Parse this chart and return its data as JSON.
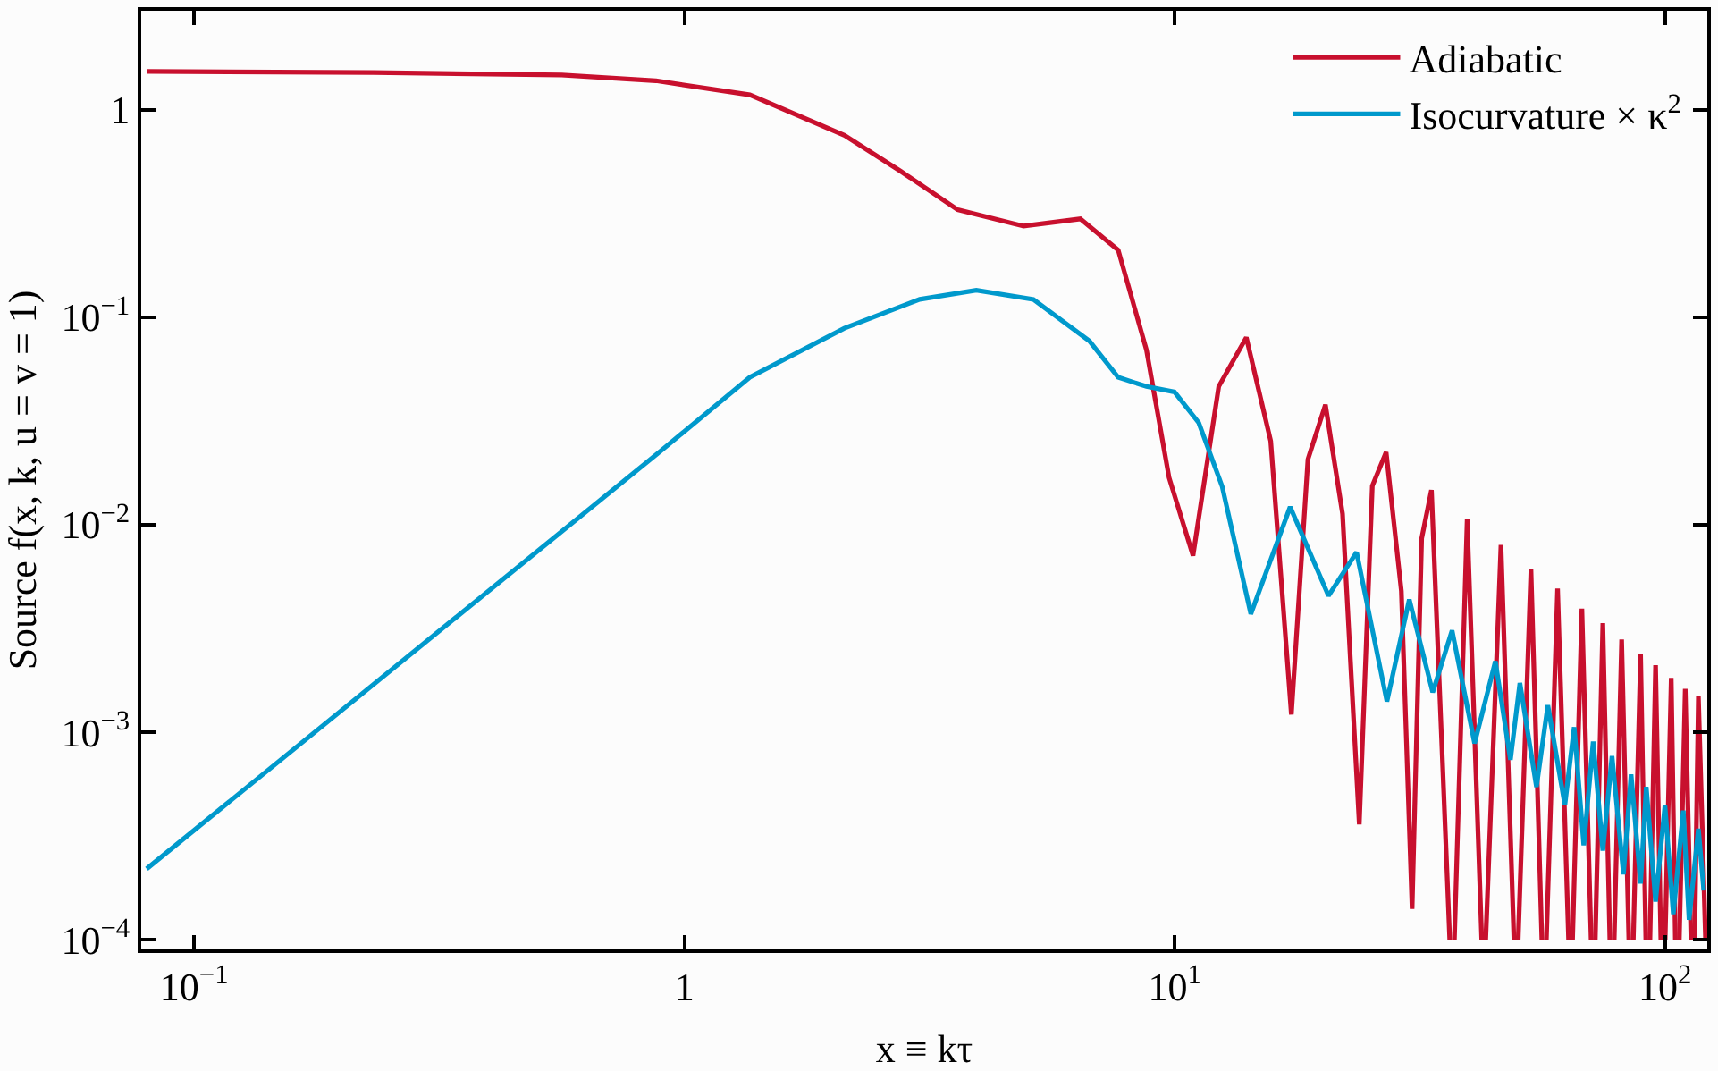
{
  "chart_data": {
    "type": "line",
    "xlabel": "x ≡ kτ",
    "ylabel": "Source f(x, k, u = v = 1)",
    "log": "xy",
    "xlim": [
      0.078,
      122
    ],
    "ylim": [
      9e-05,
      3
    ],
    "xticks": [
      {
        "value": 0.1,
        "label": "10$^{−1}$"
      },
      1,
      {
        "value": 10,
        "label": "10$^{1}$"
      },
      {
        "value": 100,
        "label": "10$^{2}$"
      }
    ],
    "yticks": [
      {
        "value": 0.0001,
        "label": "10$^{−4}$"
      },
      {
        "value": 0.001,
        "label": "10$^{−3}$"
      },
      {
        "value": 0.01,
        "label": "10$^{−2}$"
      },
      {
        "value": 0.1,
        "label": "10$^{−1}$"
      },
      1
    ],
    "legend": "top right",
    "marker": "none",
    "line_style": "solid",
    "series": [
      {
        "name": "Adiabatic",
        "color": "#c8102e",
        "x": [
          0.08,
          0.232,
          0.562,
          0.875,
          1.36,
          2.12,
          2.77,
          3.61,
          4.92,
          6.42,
          7.67,
          8.76,
          9.74,
          10.9,
          12.3,
          14.0,
          15.7,
          17.3,
          18.7,
          20.3,
          22.0,
          23.8,
          25.3,
          27.0,
          29.0,
          30.5,
          31.9,
          33.4,
          36.4,
          36.8,
          37.2,
          39.5,
          42.3,
          42.7,
          43.1,
          46.3,
          49.2,
          49.7,
          50.2,
          53.3,
          56.1,
          56.7,
          57.3,
          60.4,
          63.6,
          64.2,
          64.8,
          67.7,
          70.7,
          71.4,
          72.1,
          74.7,
          77.2,
          78.0,
          78.8,
          81.6,
          84.4,
          85.3,
          86.2,
          89.2,
          91.4,
          92.3,
          93.2,
          95.7,
          98.1,
          99.1,
          100.1,
          103,
          105,
          106,
          107,
          110,
          113,
          114,
          115,
          117,
          121
        ],
        "values": [
          1.53,
          1.51,
          1.47,
          1.38,
          1.18,
          0.754,
          0.503,
          0.33,
          0.275,
          0.298,
          0.211,
          0.0695,
          0.0169,
          0.0071,
          0.0464,
          0.08,
          0.0253,
          0.00122,
          0.0207,
          0.0379,
          0.0113,
          0.00036,
          0.0154,
          0.0224,
          0.0048,
          0.000141,
          0.0086,
          0.0147,
          0.0001,
          null,
          0.0001,
          0.0106,
          0.0001,
          null,
          0.0001,
          0.008,
          0.0001,
          null,
          0.0001,
          0.00615,
          0.0001,
          null,
          0.0001,
          0.00493,
          0.0001,
          null,
          0.0001,
          0.00395,
          0.0001,
          null,
          0.0001,
          0.00336,
          0.0001,
          null,
          0.0001,
          0.0028,
          0.0001,
          null,
          0.0001,
          0.00238,
          0.0001,
          null,
          0.0001,
          0.00211,
          0.0001,
          null,
          0.0001,
          0.00183,
          0.0001,
          null,
          0.0001,
          0.00162,
          0.0001,
          null,
          0.0001,
          0.0015,
          0.0001
        ]
      },
      {
        "name": "Isocurvature × κ$^{2}$",
        "color": "#0099cc",
        "x": [
          0.08,
          0.232,
          0.899,
          1.36,
          2.12,
          3.02,
          3.94,
          5.15,
          6.7,
          7.67,
          8.76,
          9.99,
          11.2,
          12.5,
          14.3,
          17.2,
          20.6,
          23.5,
          27.1,
          30.1,
          33.6,
          36.8,
          40.9,
          45.1,
          48.4,
          50.6,
          54.7,
          57.7,
          62.5,
          65.3,
          68.3,
          71.4,
          74.7,
          78.0,
          82.3,
          85.3,
          89.2,
          91.6,
          95.7,
          100,
          104,
          109,
          112,
          117,
          120
        ],
        "values": [
          0.00022,
          0.0017,
          0.0229,
          0.0514,
          0.0886,
          0.122,
          0.135,
          0.122,
          0.0769,
          0.0514,
          0.0464,
          0.0437,
          0.031,
          0.0153,
          0.00372,
          0.0122,
          0.00455,
          0.00738,
          0.00141,
          0.00437,
          0.00156,
          0.0031,
          0.000885,
          0.0022,
          0.000738,
          0.00173,
          0.000546,
          0.00135,
          0.000446,
          0.00106,
          0.000286,
          0.000904,
          0.000269,
          0.000769,
          0.000207,
          0.000628,
          0.000187,
          0.000546,
          0.000153,
          0.000446,
          0.000133,
          0.00042,
          0.000125,
          0.000343,
          0.000173
        ]
      }
    ]
  }
}
